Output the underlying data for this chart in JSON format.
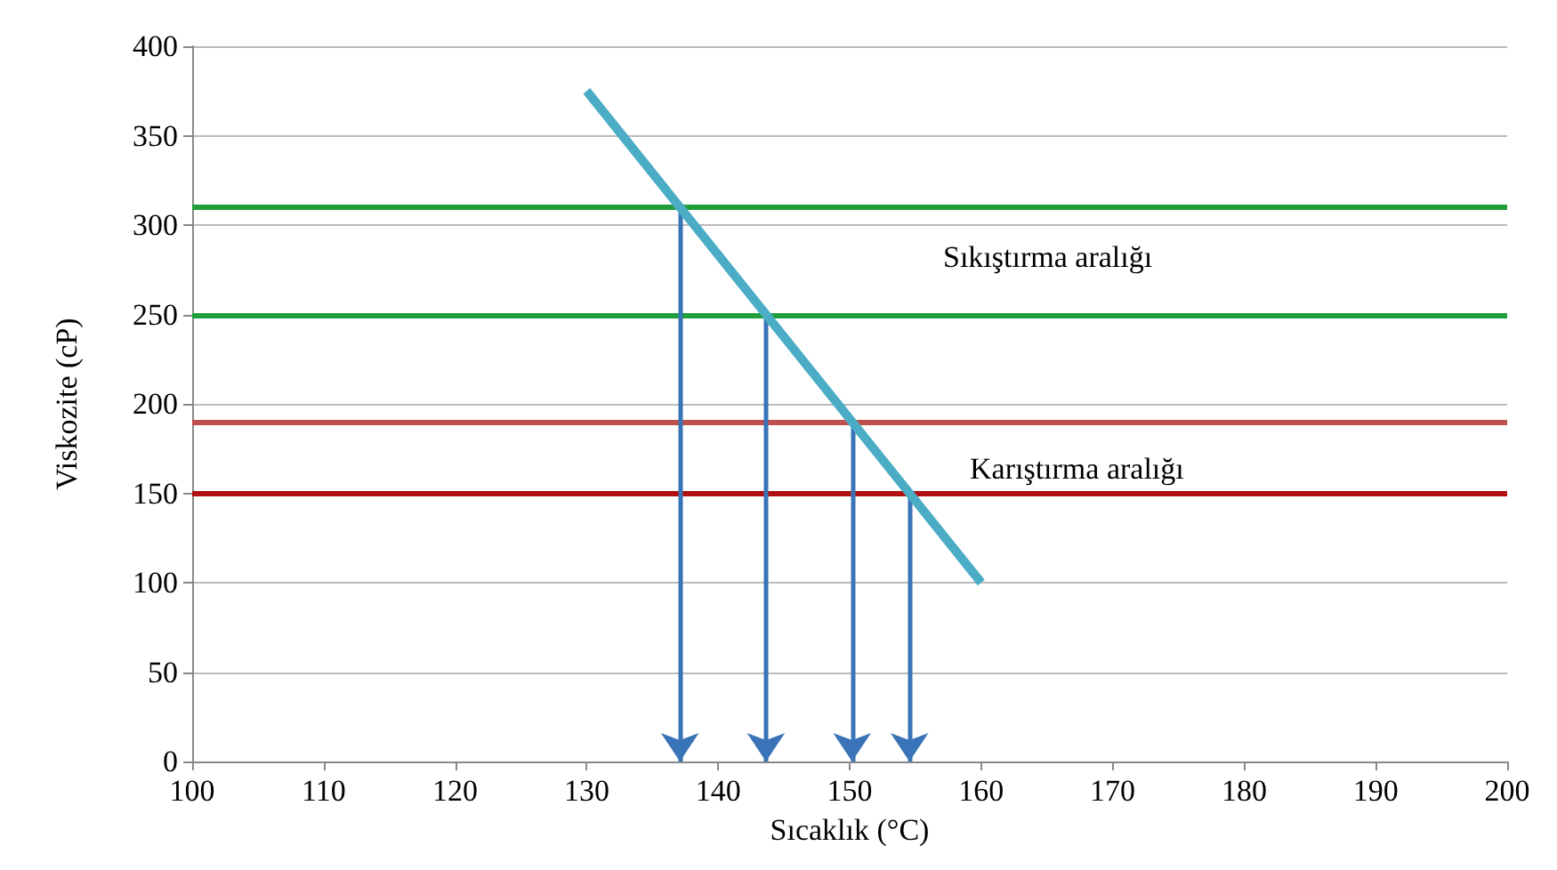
{
  "chart_data": {
    "type": "line",
    "xlabel": "Sıcaklık (°C)",
    "ylabel": "Viskozite (cP)",
    "xlim": [
      100,
      200
    ],
    "xticks": [
      100,
      110,
      120,
      130,
      140,
      150,
      160,
      170,
      180,
      190,
      200
    ],
    "ylim": [
      0,
      400
    ],
    "yticks": [
      0,
      50,
      100,
      150,
      200,
      250,
      300,
      350,
      400
    ],
    "grid": "y",
    "marker": "none",
    "line_style": "solid",
    "series": [
      {
        "color": "#4bacc6",
        "x": [
          130,
          160
        ],
        "values": [
          375,
          100
        ]
      }
    ],
    "ref_lines": [
      {
        "axis": "y",
        "value": 310,
        "color": "#1f9e3a"
      },
      {
        "axis": "y",
        "value": 250,
        "color": "#1f9e3a"
      },
      {
        "axis": "y",
        "value": 190,
        "color": "#c0504d"
      },
      {
        "axis": "y",
        "value": 150,
        "color": "#b01010"
      }
    ],
    "annotations": [
      "Sıkıştırma aralığı",
      "Karıştırma aralığı"
    ]
  }
}
